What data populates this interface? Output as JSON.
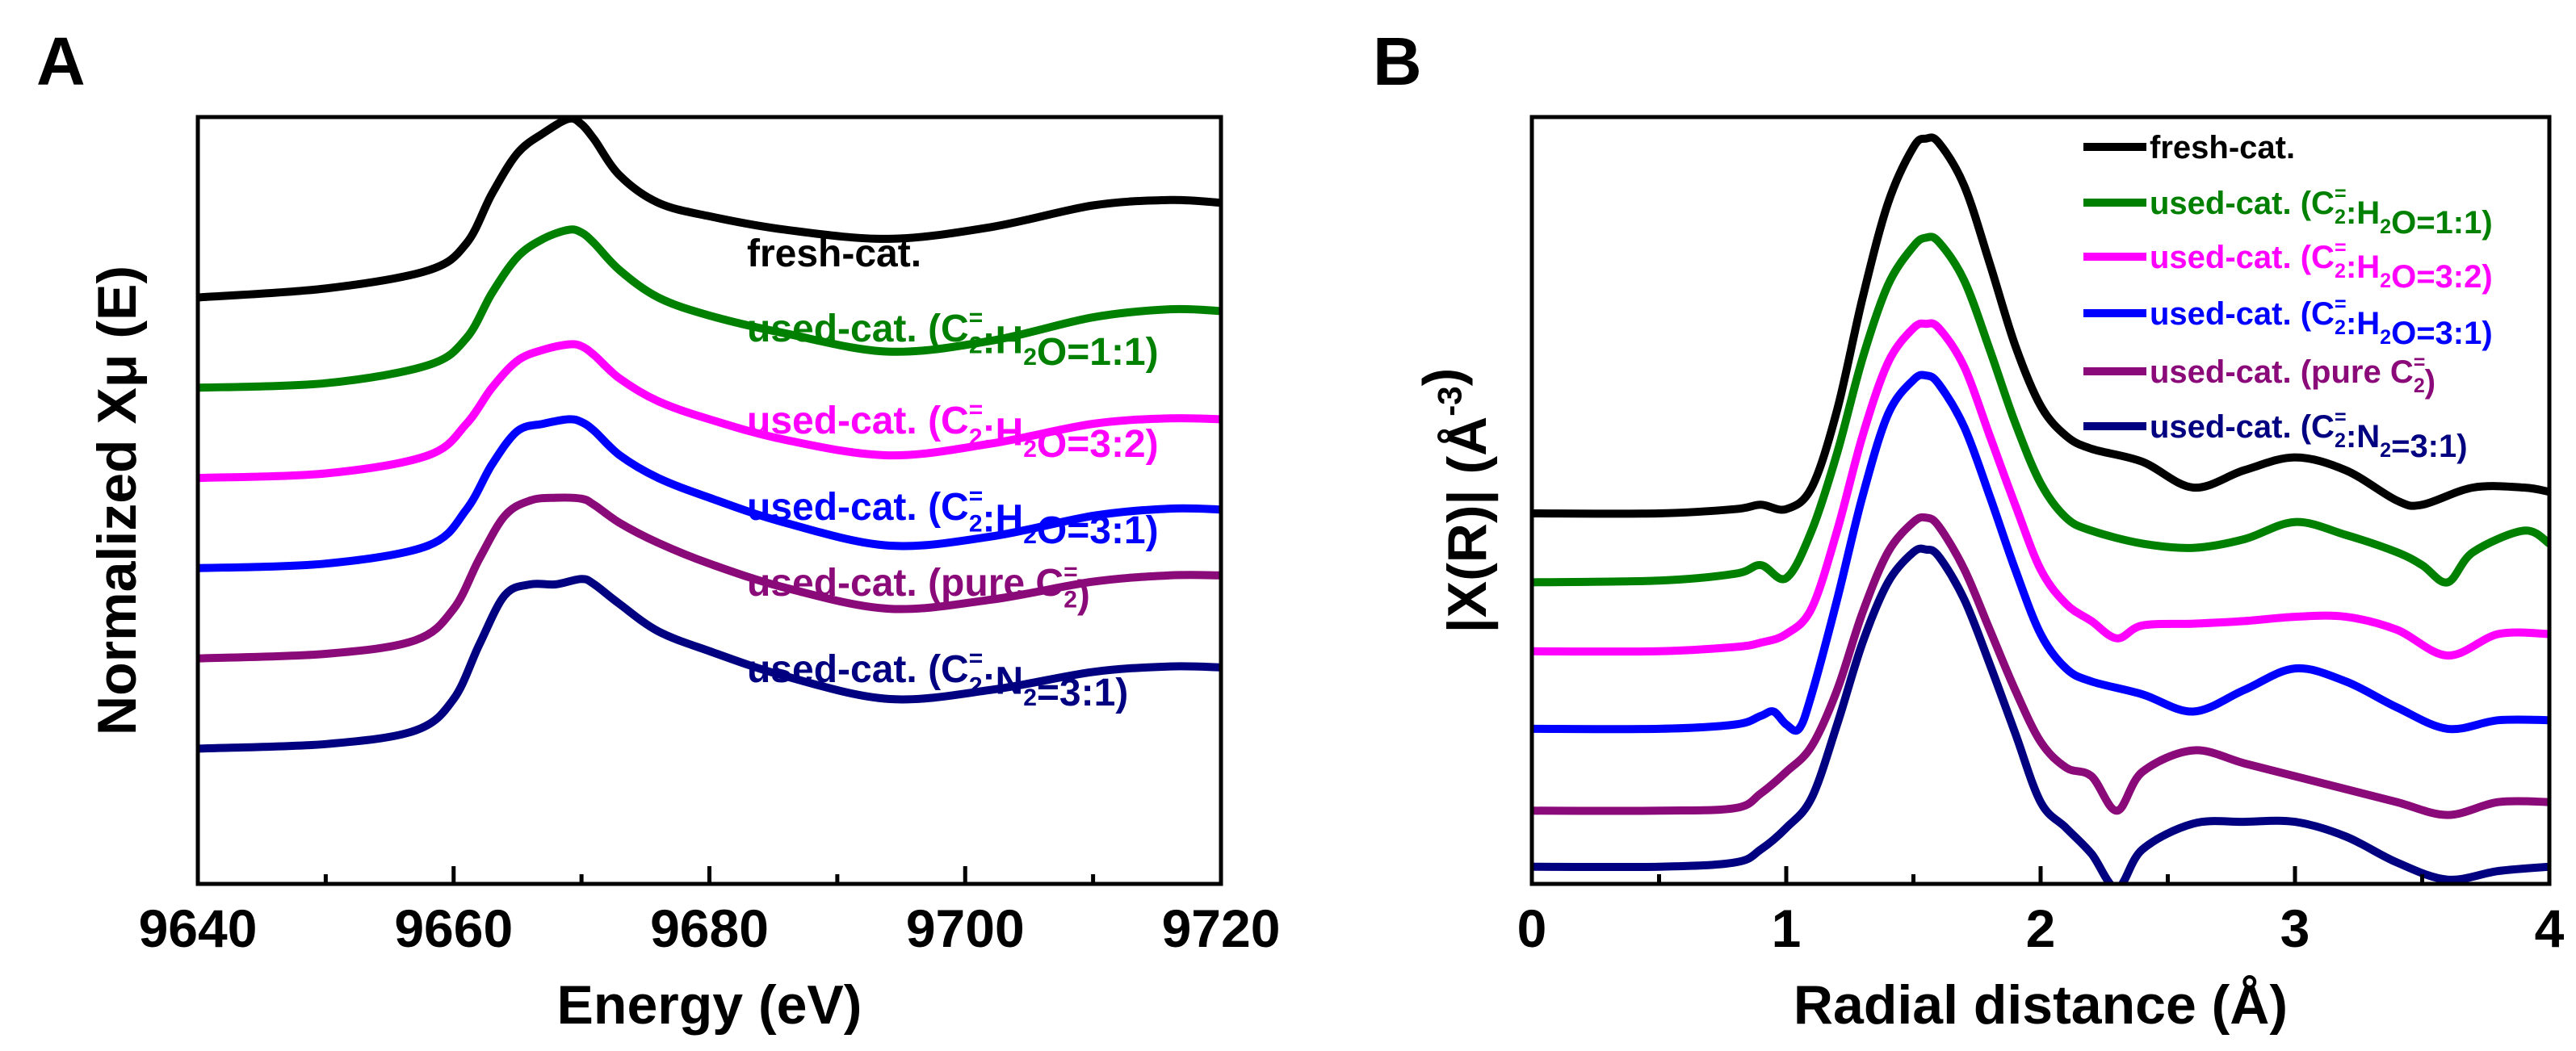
{
  "figure": {
    "panels": [
      {
        "label": "A"
      },
      {
        "label": "B"
      }
    ]
  },
  "chart_data": [
    {
      "type": "line",
      "panel": "A",
      "title": "",
      "xlabel": "Energy (eV)",
      "ylabel": "Normalized Xμ (E)",
      "xlim": [
        9640,
        9720
      ],
      "ylim": [
        -0.3,
        8.2
      ],
      "xticks": [
        9640,
        9660,
        9680,
        9700,
        9720
      ],
      "yticks_shown": false,
      "legend_placement": "inline-right",
      "series": [
        {
          "name": "fresh-cat.",
          "color": "#000000",
          "label_parts": [
            {
              "t": "fresh-cat."
            }
          ],
          "x": [
            9640,
            9650,
            9658,
            9661,
            9663,
            9665,
            9667,
            9669,
            9670,
            9671,
            9673,
            9676,
            9680,
            9686,
            9694,
            9702,
            9710,
            9716,
            9720
          ],
          "y": [
            6.2,
            6.3,
            6.5,
            6.8,
            7.35,
            7.8,
            8.02,
            8.18,
            8.12,
            7.95,
            7.55,
            7.25,
            7.1,
            6.95,
            6.85,
            6.98,
            7.22,
            7.28,
            7.25
          ]
        },
        {
          "name": "used-cat. (C2=:H2O=1:1)",
          "color": "#008000",
          "label_parts": [
            {
              "t": "used-cat. (C"
            },
            {
              "sub": "2",
              "sup": "="
            },
            {
              "t": ":H"
            },
            {
              "sub": "2"
            },
            {
              "t": "O=1:1)"
            }
          ],
          "x": [
            9640,
            9650,
            9658,
            9661,
            9663,
            9665,
            9667,
            9669,
            9670,
            9671,
            9673,
            9676,
            9680,
            9686,
            9694,
            9702,
            9710,
            9716,
            9720
          ],
          "y": [
            5.2,
            5.25,
            5.45,
            5.75,
            6.25,
            6.65,
            6.85,
            6.95,
            6.92,
            6.8,
            6.5,
            6.2,
            6.0,
            5.8,
            5.6,
            5.72,
            5.98,
            6.07,
            6.05
          ]
        },
        {
          "name": "used-cat. (C2=:H2O=3:2)",
          "color": "#ff00ff",
          "label_parts": [
            {
              "t": "used-cat. (C"
            },
            {
              "sub": "2",
              "sup": "="
            },
            {
              "t": ":H"
            },
            {
              "sub": "2"
            },
            {
              "t": "O=3:2)"
            }
          ],
          "x": [
            9640,
            9650,
            9658,
            9661,
            9663,
            9665,
            9667,
            9669,
            9670,
            9671,
            9673,
            9676,
            9680,
            9686,
            9694,
            9702,
            9710,
            9716,
            9720
          ],
          "y": [
            4.2,
            4.25,
            4.45,
            4.8,
            5.2,
            5.5,
            5.62,
            5.68,
            5.66,
            5.56,
            5.3,
            5.05,
            4.85,
            4.62,
            4.45,
            4.58,
            4.8,
            4.86,
            4.85
          ]
        },
        {
          "name": "used-cat. (C2=:H2O=3:1)",
          "color": "#0000ff",
          "label_parts": [
            {
              "t": "used-cat. (C"
            },
            {
              "sub": "2",
              "sup": "="
            },
            {
              "t": ":H"
            },
            {
              "sub": "2"
            },
            {
              "t": "O=3:1)"
            }
          ],
          "x": [
            9640,
            9650,
            9658,
            9661,
            9663,
            9665,
            9667,
            9669,
            9670,
            9671,
            9673,
            9676,
            9680,
            9686,
            9694,
            9702,
            9710,
            9716,
            9720
          ],
          "y": [
            3.2,
            3.25,
            3.45,
            3.85,
            4.35,
            4.72,
            4.8,
            4.85,
            4.82,
            4.72,
            4.45,
            4.2,
            3.98,
            3.7,
            3.45,
            3.55,
            3.78,
            3.86,
            3.85
          ]
        },
        {
          "name": "used-cat. (pure C2=)",
          "color": "#8b0a7a",
          "label_parts": [
            {
              "t": "used-cat. (pure C"
            },
            {
              "sub": "2",
              "sup": "="
            },
            {
              "t": ")"
            }
          ],
          "x": [
            9640,
            9650,
            9657,
            9660,
            9662,
            9664,
            9666,
            9668,
            9670,
            9671,
            9673,
            9676,
            9680,
            9686,
            9694,
            9702,
            9710,
            9716,
            9720
          ],
          "y": [
            2.2,
            2.25,
            2.4,
            2.75,
            3.3,
            3.78,
            3.95,
            3.98,
            3.97,
            3.9,
            3.7,
            3.48,
            3.25,
            2.98,
            2.75,
            2.85,
            3.05,
            3.12,
            3.12
          ]
        },
        {
          "name": "used-cat. (C2=:N2=3:1)",
          "color": "#000080",
          "label_parts": [
            {
              "t": "used-cat. (C"
            },
            {
              "sub": "2",
              "sup": "="
            },
            {
              "t": ":N"
            },
            {
              "sub": "2"
            },
            {
              "t": "=3:1)"
            }
          ],
          "x": [
            9640,
            9650,
            9657,
            9660,
            9662,
            9664,
            9666,
            9668,
            9670,
            9671,
            9673,
            9676,
            9680,
            9686,
            9694,
            9702,
            9710,
            9716,
            9720
          ],
          "y": [
            1.2,
            1.25,
            1.4,
            1.75,
            2.35,
            2.9,
            3.02,
            3.02,
            3.08,
            3.02,
            2.8,
            2.5,
            2.28,
            2.0,
            1.75,
            1.85,
            2.05,
            2.11,
            2.1
          ]
        }
      ]
    },
    {
      "type": "line",
      "panel": "B",
      "title": "",
      "xlabel": "Radial distance (Å)",
      "ylabel_parts": [
        {
          "t": "|X(R)|  (Å"
        },
        {
          "sup": "-3"
        },
        {
          "t": ")"
        }
      ],
      "xlim": [
        0,
        4
      ],
      "ylim": [
        -0.5,
        8.4
      ],
      "xticks": [
        0,
        1,
        2,
        3,
        4
      ],
      "yticks_shown": false,
      "legend_placement": "top-right",
      "series": [
        {
          "name": "fresh-cat.",
          "color": "#000000",
          "label_parts": [
            {
              "t": "fresh-cat."
            }
          ],
          "x": [
            0,
            0.5,
            0.8,
            0.9,
            1.0,
            1.1,
            1.2,
            1.3,
            1.4,
            1.5,
            1.55,
            1.6,
            1.7,
            1.8,
            1.9,
            2.0,
            2.1,
            2.2,
            2.4,
            2.6,
            2.8,
            3.0,
            3.2,
            3.4,
            3.5,
            3.7,
            3.9,
            4.0
          ],
          "y": [
            3.8,
            3.8,
            3.85,
            3.9,
            3.85,
            4.1,
            5.0,
            6.3,
            7.4,
            8.05,
            8.15,
            8.1,
            7.6,
            6.7,
            5.75,
            5.05,
            4.7,
            4.55,
            4.4,
            4.1,
            4.3,
            4.45,
            4.3,
            3.95,
            3.9,
            4.1,
            4.1,
            4.05
          ]
        },
        {
          "name": "used-cat. (C2=:H2O=1:1)",
          "color": "#008000",
          "label_parts": [
            {
              "t": "used-cat. (C"
            },
            {
              "sub": "2",
              "sup": "="
            },
            {
              "t": ":H"
            },
            {
              "sub": "2"
            },
            {
              "t": "O=1:1)"
            }
          ],
          "x": [
            0,
            0.5,
            0.8,
            0.9,
            1.0,
            1.1,
            1.2,
            1.3,
            1.4,
            1.5,
            1.55,
            1.6,
            1.7,
            1.8,
            1.9,
            2.0,
            2.1,
            2.2,
            2.4,
            2.6,
            2.8,
            3.0,
            3.2,
            3.4,
            3.5,
            3.6,
            3.7,
            3.9,
            4.0
          ],
          "y": [
            3.0,
            3.02,
            3.1,
            3.2,
            3.05,
            3.6,
            4.5,
            5.6,
            6.45,
            6.9,
            7.0,
            6.95,
            6.5,
            5.7,
            4.85,
            4.15,
            3.75,
            3.6,
            3.45,
            3.4,
            3.5,
            3.7,
            3.55,
            3.35,
            3.2,
            3.0,
            3.35,
            3.6,
            3.45
          ]
        },
        {
          "name": "used-cat. (C2=:H2O=3:2)",
          "color": "#ff00ff",
          "label_parts": [
            {
              "t": "used-cat. (C"
            },
            {
              "sub": "2",
              "sup": "="
            },
            {
              "t": ":H"
            },
            {
              "sub": "2"
            },
            {
              "t": "O=3:2)"
            }
          ],
          "x": [
            0,
            0.5,
            0.8,
            0.9,
            1.0,
            1.1,
            1.2,
            1.3,
            1.4,
            1.5,
            1.55,
            1.6,
            1.7,
            1.8,
            1.9,
            2.0,
            2.1,
            2.2,
            2.3,
            2.4,
            2.6,
            2.8,
            3.0,
            3.2,
            3.4,
            3.6,
            3.8,
            4.0
          ],
          "y": [
            2.2,
            2.2,
            2.25,
            2.3,
            2.4,
            2.7,
            3.6,
            4.7,
            5.55,
            5.95,
            6.0,
            5.95,
            5.5,
            4.7,
            3.9,
            3.15,
            2.75,
            2.55,
            2.35,
            2.5,
            2.52,
            2.55,
            2.6,
            2.6,
            2.45,
            2.15,
            2.4,
            2.4
          ]
        },
        {
          "name": "used-cat. (C2=:H2O=3:1)",
          "color": "#0000ff",
          "label_parts": [
            {
              "t": "used-cat. (C"
            },
            {
              "sub": "2",
              "sup": "="
            },
            {
              "t": ":H"
            },
            {
              "sub": "2"
            },
            {
              "t": "O=3:1)"
            }
          ],
          "x": [
            0,
            0.5,
            0.8,
            0.9,
            0.95,
            1.0,
            1.05,
            1.1,
            1.2,
            1.3,
            1.4,
            1.5,
            1.55,
            1.6,
            1.7,
            1.8,
            1.9,
            2.0,
            2.1,
            2.2,
            2.4,
            2.6,
            2.8,
            3.0,
            3.2,
            3.4,
            3.6,
            3.8,
            4.0
          ],
          "y": [
            1.3,
            1.3,
            1.35,
            1.45,
            1.5,
            1.35,
            1.3,
            1.7,
            2.8,
            4.0,
            4.95,
            5.35,
            5.4,
            5.3,
            4.8,
            4.0,
            3.15,
            2.4,
            2.0,
            1.85,
            1.7,
            1.5,
            1.75,
            2.0,
            1.85,
            1.55,
            1.3,
            1.4,
            1.4
          ]
        },
        {
          "name": "used-cat. (pure C2=)",
          "color": "#8b0a7a",
          "label_parts": [
            {
              "t": "used-cat. (pure C"
            },
            {
              "sub": "2",
              "sup": "="
            },
            {
              "t": ")"
            }
          ],
          "x": [
            0,
            0.5,
            0.8,
            0.9,
            1.0,
            1.1,
            1.2,
            1.3,
            1.4,
            1.5,
            1.55,
            1.6,
            1.7,
            1.8,
            1.9,
            2.0,
            2.1,
            2.2,
            2.3,
            2.4,
            2.6,
            2.8,
            3.0,
            3.2,
            3.4,
            3.6,
            3.8,
            4.0
          ],
          "y": [
            0.35,
            0.35,
            0.38,
            0.55,
            0.8,
            1.1,
            1.75,
            2.65,
            3.35,
            3.7,
            3.75,
            3.65,
            3.15,
            2.45,
            1.75,
            1.15,
            0.85,
            0.75,
            0.35,
            0.8,
            1.05,
            0.9,
            0.75,
            0.6,
            0.45,
            0.3,
            0.45,
            0.45
          ]
        },
        {
          "name": "used-cat. (C2=:N2=3:1)",
          "color": "#000080",
          "label_parts": [
            {
              "t": "used-cat. (C"
            },
            {
              "sub": "2",
              "sup": "="
            },
            {
              "t": ":N"
            },
            {
              "sub": "2"
            },
            {
              "t": "=3:1)"
            }
          ],
          "x": [
            0,
            0.5,
            0.8,
            0.9,
            1.0,
            1.1,
            1.2,
            1.3,
            1.4,
            1.5,
            1.55,
            1.6,
            1.7,
            1.8,
            1.9,
            2.0,
            2.1,
            2.2,
            2.3,
            2.4,
            2.6,
            2.8,
            3.0,
            3.2,
            3.4,
            3.6,
            3.8,
            4.0
          ],
          "y": [
            -0.3,
            -0.3,
            -0.25,
            -0.1,
            0.15,
            0.5,
            1.35,
            2.3,
            3.0,
            3.35,
            3.38,
            3.3,
            2.8,
            2.05,
            1.25,
            0.45,
            0.15,
            -0.15,
            -0.55,
            -0.1,
            0.2,
            0.22,
            0.22,
            0.05,
            -0.25,
            -0.45,
            -0.35,
            -0.3
          ]
        }
      ]
    }
  ]
}
